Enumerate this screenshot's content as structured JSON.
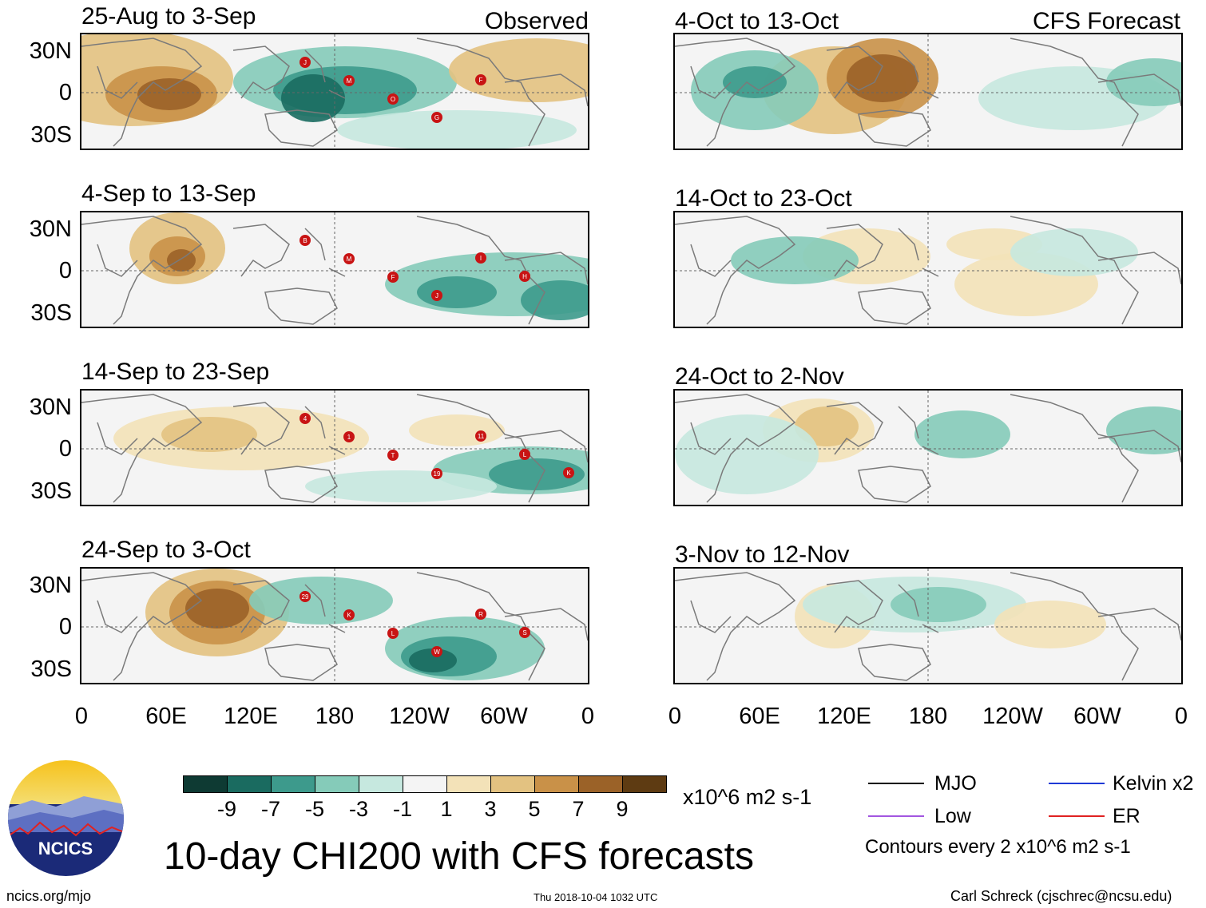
{
  "chart_data": {
    "type": "heatmap",
    "title": "10-day CHI200 with CFS forecasts",
    "variable": "CHI200 (200-hPa velocity potential) anomaly",
    "units": "x10^6 m2 s-1",
    "columns": [
      {
        "name": "Observed",
        "panels": [
          {
            "title": "25-Aug to 3-Sep",
            "storms": [
              "J",
              "M",
              "O",
              "G",
              "F"
            ]
          },
          {
            "title": "4-Sep to 13-Sep",
            "storms": [
              "B",
              "M",
              "F",
              "J",
              "I",
              "H"
            ]
          },
          {
            "title": "14-Sep to 23-Sep",
            "storms": [
              "4",
              "1",
              "T",
              "19",
              "11",
              "L",
              "K"
            ]
          },
          {
            "title": "24-Sep to 3-Oct",
            "storms": [
              "29",
              "K",
              "L",
              "W",
              "R",
              "S"
            ]
          }
        ]
      },
      {
        "name": "CFS Forecast",
        "panels": [
          {
            "title": "4-Oct to 13-Oct",
            "storms": []
          },
          {
            "title": "14-Oct to 23-Oct",
            "storms": []
          },
          {
            "title": "24-Oct to 2-Nov",
            "storms": []
          },
          {
            "title": "3-Nov to 12-Nov",
            "storms": []
          }
        ]
      }
    ],
    "lat_ticks": [
      "30N",
      "0",
      "30S"
    ],
    "lon_ticks": [
      "0",
      "60E",
      "120E",
      "180",
      "120W",
      "60W",
      "0"
    ],
    "colorbar": {
      "colors": [
        "#0e3a33",
        "#1a6b60",
        "#3d9a8c",
        "#85cbb9",
        "#c6e8df",
        "#f4f4f4",
        "#f3e2b8",
        "#e3c281",
        "#c99148",
        "#9b6228",
        "#5e3b12"
      ],
      "ticks": [
        "-9",
        "-7",
        "-5",
        "-3",
        "-1",
        "1",
        "3",
        "5",
        "7",
        "9"
      ],
      "units": "x10^6 m2 s-1"
    },
    "legend": [
      {
        "label": "MJO",
        "color": "#000000"
      },
      {
        "label": "Kelvin x2",
        "color": "#1f3ad6"
      },
      {
        "label": "Low",
        "color": "#a256e0"
      },
      {
        "label": "ER",
        "color": "#e02222"
      }
    ],
    "contour_note": "Contours every 2 x10^6 m2 s-1"
  },
  "logo": {
    "text": "NCICS"
  },
  "footer": {
    "left": "ncics.org/mjo",
    "center": "Thu 2018-10-04 1032 UTC",
    "right": "Carl Schreck (cjschrec@ncsu.edu)"
  }
}
